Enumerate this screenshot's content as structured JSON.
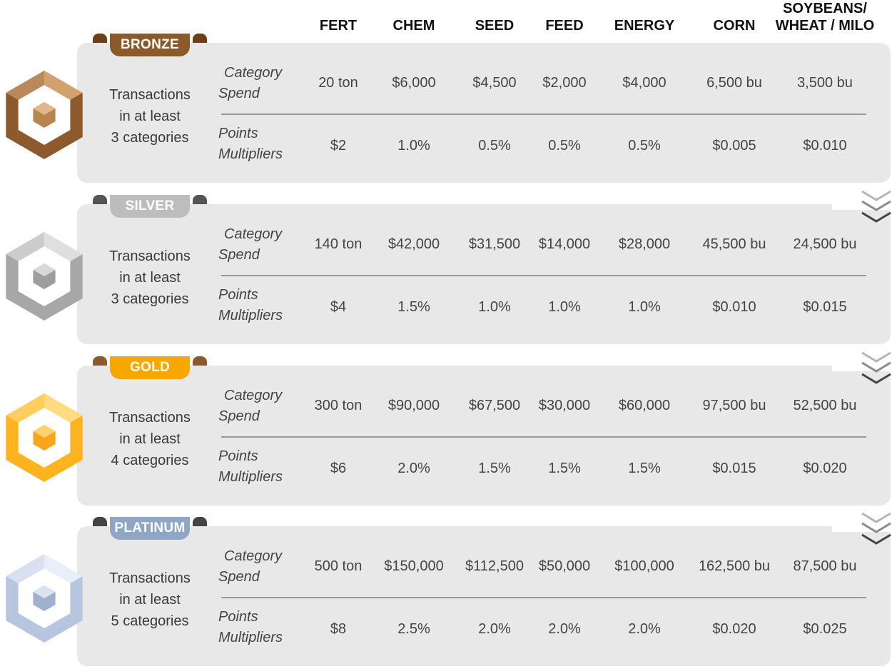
{
  "columns": [
    "FERT",
    "CHEM",
    "SEED",
    "FEED",
    "ENERGY",
    "CORN",
    "SOYBEANS/\nWHEAT / MILO"
  ],
  "row_labels": {
    "spend": [
      "Category",
      "Spend"
    ],
    "multipliers": [
      "Points",
      "Multipliers"
    ]
  },
  "tiers": [
    {
      "name": "BRONZE",
      "requirement": [
        "Transactions",
        "in at least",
        "3 categories"
      ],
      "spend": [
        "20 ton",
        "$6,000",
        "$4,500",
        "$2,000",
        "$4,000",
        "6,500 bu",
        "3,500 bu"
      ],
      "multipliers": [
        "$2",
        "1.0%",
        "0.5%",
        "0.5%",
        "0.5%",
        "$0.005",
        "$0.010"
      ]
    },
    {
      "name": "SILVER",
      "requirement": [
        "Transactions",
        "in at least",
        "3 categories"
      ],
      "spend": [
        "140 ton",
        "$42,000",
        "$31,500",
        "$14,000",
        "$28,000",
        "45,500 bu",
        "24,500 bu"
      ],
      "multipliers": [
        "$4",
        "1.5%",
        "1.0%",
        "1.0%",
        "1.0%",
        "$0.010",
        "$0.015"
      ]
    },
    {
      "name": "GOLD",
      "requirement": [
        "Transactions",
        "in at least",
        "4 categories"
      ],
      "spend": [
        "300 ton",
        "$90,000",
        "$67,500",
        "$30,000",
        "$60,000",
        "97,500 bu",
        "52,500 bu"
      ],
      "multipliers": [
        "$6",
        "2.0%",
        "1.5%",
        "1.5%",
        "1.5%",
        "$0.015",
        "$0.020"
      ]
    },
    {
      "name": "PLATINUM",
      "requirement": [
        "Transactions",
        "in at least",
        "5 categories"
      ],
      "spend": [
        "500 ton",
        "$150,000",
        "$112,500",
        "$50,000",
        "$100,000",
        "162,500 bu",
        "87,500 bu"
      ],
      "multipliers": [
        "$8",
        "2.5%",
        "2.0%",
        "2.0%",
        "2.0%",
        "$0.020",
        "$0.025"
      ]
    }
  ],
  "colors": {
    "bronze": {
      "ribbon": "#8a5a2b",
      "tail": "#6b3f18",
      "hex_dark": "#8c5a2c",
      "hex_light": "#d9a978",
      "core_dark": "#b9854f",
      "core_light": "#e3b688"
    },
    "silver": {
      "ribbon": "#bdbdbd",
      "tail": "#555555",
      "hex_dark": "#a7a7a7",
      "hex_light": "#e5e5e5",
      "core_dark": "#9e9e9e",
      "core_light": "#d8d8d8"
    },
    "gold": {
      "ribbon": "#f6a800",
      "tail": "#8a5a2b",
      "hex_dark": "#ffb41f",
      "hex_light": "#ffe08a",
      "core_dark": "#f7a51c",
      "core_light": "#ffd271"
    },
    "platinum": {
      "ribbon": "#8fa6c6",
      "tail": "#444444",
      "hex_dark": "#b7c6df",
      "hex_light": "#eef3fb",
      "core_dark": "#9fb1cf",
      "core_light": "#d9e3f2"
    },
    "card": "#e8e8e8",
    "chevron": "#555555"
  },
  "icons": [
    "tier-medal-icon",
    "chevron-down-icon"
  ]
}
